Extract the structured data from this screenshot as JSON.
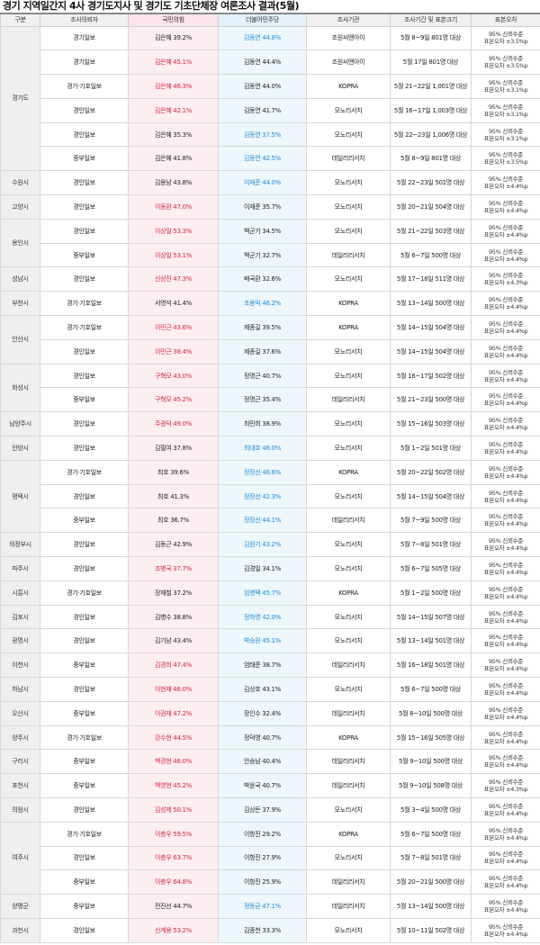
{
  "title": "경기 지역일간지 4사 경기도지사 및 경기도 기초단체장 여론조사 결과(5월)",
  "headers": [
    "구분",
    "조사의뢰자",
    "국민의힘",
    "더불어민주당",
    "조사기관",
    "조사기간 및 표본크기",
    "표본오차"
  ],
  "colors": {
    "ppp_lead": "#d9203f",
    "dem_lead": "#1f8ad6",
    "ppp_bg": "#fdeef2",
    "dem_bg": "#edf7fc",
    "region_bg": "#efefef"
  },
  "groups": [
    {
      "region": "경기도",
      "rows": [
        {
          "client": "경기일보",
          "ppp": "김은혜 39.2%",
          "dem": "김동연 44.8%",
          "lead": "dem",
          "agency": "조원씨앤아이",
          "period": "5월 8~9일 801명 대상",
          "error1": "95% 신뢰수준",
          "error2": "표본오차 ±3.5%p"
        },
        {
          "client": "경기일보",
          "ppp": "김은혜 45.1%",
          "dem": "김동연 44.4%",
          "lead": "ppp",
          "agency": "조원씨앤아이",
          "period": "5월 17일 801명 대상",
          "error1": "95% 신뢰수준",
          "error2": "표본오차 ±3.5%p"
        },
        {
          "client": "경기·기호일보",
          "ppp": "김은혜 46.3%",
          "dem": "김동연 44.0%",
          "lead": "ppp",
          "agency": "KOPRA",
          "period": "5월 21~22일 1,001명 대상",
          "error1": "95% 신뢰수준",
          "error2": "표본오차 ±3.1%p"
        },
        {
          "client": "경인일보",
          "ppp": "김은혜 42.1%",
          "dem": "김동연 41.7%",
          "lead": "ppp",
          "agency": "모노리서치",
          "period": "5월 16~17일 1,003명 대상",
          "error1": "95% 신뢰수준",
          "error2": "표본오차 ±3.1%p"
        },
        {
          "client": "경인일보",
          "ppp": "김은혜 35.3%",
          "dem": "김동연 37.5%",
          "lead": "dem",
          "agency": "모노리서치",
          "period": "5월 22~23일 1,006명 대상",
          "error1": "95% 신뢰수준",
          "error2": "표본오차 ±3.1%p"
        },
        {
          "client": "중부일보",
          "ppp": "김은혜 41.8%",
          "dem": "김동연 42.5%",
          "lead": "dem",
          "agency": "데일리리서치",
          "period": "5월 8~9일 801명 대상",
          "error1": "95% 신뢰수준",
          "error2": "표본오차 ±3.5%p"
        }
      ]
    },
    {
      "region": "수원시",
      "rows": [
        {
          "client": "경인일보",
          "ppp": "김용남 43.8%",
          "dem": "이재준 44.0%",
          "lead": "dem",
          "agency": "모노리서치",
          "period": "5월 22~23일 501명 대상",
          "error1": "95% 신뢰수준",
          "error2": "표본오차 ±4.4%p"
        }
      ]
    },
    {
      "region": "고양시",
      "rows": [
        {
          "client": "경인일보",
          "ppp": "이동환 47.0%",
          "dem": "이재준 35.7%",
          "lead": "ppp",
          "agency": "모노리서치",
          "period": "5월 20~21일 504명 대상",
          "error1": "95% 신뢰수준",
          "error2": "표본오차 ±4.4%p"
        }
      ]
    },
    {
      "region": "용인시",
      "rows": [
        {
          "client": "경인일보",
          "ppp": "이상일 53.3%",
          "dem": "백군기 34.5%",
          "lead": "ppp",
          "agency": "모노리서치",
          "period": "5월 21~22일 503명 대상",
          "error1": "95% 신뢰수준",
          "error2": "표본오차 ±4.4%p"
        },
        {
          "client": "중부일보",
          "ppp": "이상일 53.1%",
          "dem": "백군기 32.7%",
          "lead": "ppp",
          "agency": "데일리리서치",
          "period": "5월 6~7일 500명 대상",
          "error1": "95% 신뢰수준",
          "error2": "표본오차 ±4.4%p"
        }
      ]
    },
    {
      "region": "성남시",
      "rows": [
        {
          "client": "경인일보",
          "ppp": "신상진 47.3%",
          "dem": "배국환 32.6%",
          "lead": "ppp",
          "agency": "모노리서치",
          "period": "5월 17~18일 511명 대상",
          "error1": "95% 신뢰수준",
          "error2": "표본오차 ±4.3%p"
        }
      ]
    },
    {
      "region": "부천시",
      "rows": [
        {
          "client": "경기·기호일보",
          "ppp": "서영석 41.4%",
          "dem": "조용익 46.2%",
          "lead": "dem",
          "agency": "KOPRA",
          "period": "5월 13~14일 500명 대상",
          "error1": "95% 신뢰수준",
          "error2": "표본오차 ±4.4%p"
        }
      ]
    },
    {
      "region": "안산시",
      "rows": [
        {
          "client": "경기·기호일보",
          "ppp": "이민근 43.6%",
          "dem": "제종길 39.5%",
          "lead": "ppp",
          "agency": "KOPRA",
          "period": "5월 14~15일 504명 대상",
          "error1": "95% 신뢰수준",
          "error2": "표본오차 ±4.4%p"
        },
        {
          "client": "경인일보",
          "ppp": "이민근 38.4%",
          "dem": "제종길 37.6%",
          "lead": "ppp",
          "agency": "모노리서치",
          "period": "5월 14~15일 504명 대상",
          "error1": "95% 신뢰수준",
          "error2": "표본오차 ±4.4%p"
        }
      ]
    },
    {
      "region": "화성시",
      "rows": [
        {
          "client": "경인일보",
          "ppp": "구혁모 43.0%",
          "dem": "정명근 40.7%",
          "lead": "ppp",
          "agency": "모노리서치",
          "period": "5월 16~17일 502명 대상",
          "error1": "95% 신뢰수준",
          "error2": "표본오차 ±4.4%p"
        },
        {
          "client": "중부일보",
          "ppp": "구혁모 45.2%",
          "dem": "정명근 35.4%",
          "lead": "ppp",
          "agency": "데일리리서치",
          "period": "5월 21~23일 500명 대상",
          "error1": "95% 신뢰수준",
          "error2": "표본오차 ±4.4%p"
        }
      ]
    },
    {
      "region": "남양주시",
      "rows": [
        {
          "client": "경인일보",
          "ppp": "주광덕 49.0%",
          "dem": "최민희 38.9%",
          "lead": "ppp",
          "agency": "모노리서치",
          "period": "5월 15~16일 503명 대상",
          "error1": "95% 신뢰수준",
          "error2": "표본오차 ±4.4%p"
        }
      ]
    },
    {
      "region": "안양시",
      "rows": [
        {
          "client": "경인일보",
          "ppp": "김필여 37.8%",
          "dem": "최대호 46.0%",
          "lead": "dem",
          "agency": "모노리서치",
          "period": "5월 1~2일 501명 대상",
          "error1": "95% 신뢰수준",
          "error2": "표본오차 ±4.4%p"
        }
      ]
    },
    {
      "region": "평택시",
      "rows": [
        {
          "client": "경기·기호일보",
          "ppp": "최호 39.6%",
          "dem": "정장선 46.6%",
          "lead": "dem",
          "agency": "KOPRA",
          "period": "5월 20~22일 502명 대상",
          "error1": "95% 신뢰수준",
          "error2": "표본오차 ±4.4%p"
        },
        {
          "client": "경인일보",
          "ppp": "최호 41.3%",
          "dem": "정장선 42.3%",
          "lead": "dem",
          "agency": "모노리서치",
          "period": "5월 14~15일 504명 대상",
          "error1": "95% 신뢰수준",
          "error2": "표본오차 ±4.4%p"
        },
        {
          "client": "중부일보",
          "ppp": "최호 36.7%",
          "dem": "정장선 44.1%",
          "lead": "dem",
          "agency": "데일리리서치",
          "period": "5월 7~9일 500명 대상",
          "error1": "95% 신뢰수준",
          "error2": "표본오차 ±4.4%p"
        }
      ]
    },
    {
      "region": "의정부시",
      "rows": [
        {
          "client": "경인일보",
          "ppp": "김동근 42.9%",
          "dem": "김원기 43.2%",
          "lead": "dem",
          "agency": "모노리서치",
          "period": "5월 7~8일 501명 대상",
          "error1": "95% 신뢰수준",
          "error2": "표본오차 ±4.4%p"
        }
      ]
    },
    {
      "region": "파주시",
      "rows": [
        {
          "client": "경인일보",
          "ppp": "조병국 37.7%",
          "dem": "김경일 34.1%",
          "lead": "ppp",
          "agency": "모노리서치",
          "period": "5월 6~7일 505명 대상",
          "error1": "95% 신뢰수준",
          "error2": "표본오차 ±4.4%p"
        }
      ]
    },
    {
      "region": "시흥시",
      "rows": [
        {
          "client": "경기·기호일보",
          "ppp": "장재철 37.2%",
          "dem": "임병택 45.7%",
          "lead": "dem",
          "agency": "KOPRA",
          "period": "5월 1~2일 500명 대상",
          "error1": "95% 신뢰수준",
          "error2": "표본오차 ±4.4%p"
        }
      ]
    },
    {
      "region": "김포시",
      "rows": [
        {
          "client": "경인일보",
          "ppp": "김병수 38.8%",
          "dem": "정하영 42.0%",
          "lead": "dem",
          "agency": "모노리서치",
          "period": "5월 14~15일 507명 대상",
          "error1": "95% 신뢰수준",
          "error2": "표본오차 ±4.4%p"
        }
      ]
    },
    {
      "region": "광명시",
      "rows": [
        {
          "client": "경인일보",
          "ppp": "김기남 43.4%",
          "dem": "박승원 45.1%",
          "lead": "dem",
          "agency": "모노리서치",
          "period": "5월 13~14일 501명 대상",
          "error1": "95% 신뢰수준",
          "error2": "표본오차 ±4.4%p"
        }
      ]
    },
    {
      "region": "이천시",
      "rows": [
        {
          "client": "중부일보",
          "ppp": "김경희 47.4%",
          "dem": "엄태준 38.7%",
          "lead": "ppp",
          "agency": "데일리리서치",
          "period": "5월 16~18일 501명 대상",
          "error1": "95% 신뢰수준",
          "error2": "표본오차 ±4.4%p"
        }
      ]
    },
    {
      "region": "하남시",
      "rows": [
        {
          "client": "경인일보",
          "ppp": "이현재 46.0%",
          "dem": "김상호 43.1%",
          "lead": "ppp",
          "agency": "모노리서치",
          "period": "5월 6~7일 500명 대상",
          "error1": "95% 신뢰수준",
          "error2": "표본오차 ±4.4%p"
        }
      ]
    },
    {
      "region": "오산시",
      "rows": [
        {
          "client": "중부일보",
          "ppp": "이권재 47.2%",
          "dem": "장인수 32.4%",
          "lead": "ppp",
          "agency": "데일리리서치",
          "period": "5월 8~10일 500명 대상",
          "error1": "95% 신뢰수준",
          "error2": "표본오차 ±4.4%p"
        }
      ]
    },
    {
      "region": "양주시",
      "rows": [
        {
          "client": "경기·기호일보",
          "ppp": "강수현 44.5%",
          "dem": "정덕영 40.7%",
          "lead": "ppp",
          "agency": "KOPRA",
          "period": "5월 15~16일 505명 대상",
          "error1": "95% 신뢰수준",
          "error2": "표본오차 ±4.4%p"
        }
      ]
    },
    {
      "region": "구리시",
      "rows": [
        {
          "client": "중부일보",
          "ppp": "백경현 46.0%",
          "dem": "안승남 40.4%",
          "lead": "ppp",
          "agency": "데일리리서치",
          "period": "5월 9~10일 500명 대상",
          "error1": "95% 신뢰수준",
          "error2": "표본오차 ±4.4%p"
        }
      ]
    },
    {
      "region": "포천시",
      "rows": [
        {
          "client": "중부일보",
          "ppp": "백영현 45.2%",
          "dem": "박윤국 40.7%",
          "lead": "ppp",
          "agency": "데일리리서치",
          "period": "5월 9~10일 508명 대상",
          "error1": "95% 신뢰수준",
          "error2": "표본오차 ±4.3%p"
        }
      ]
    },
    {
      "region": "의왕시",
      "rows": [
        {
          "client": "경인일보",
          "ppp": "김성제 50.1%",
          "dem": "김상돈 37.9%",
          "lead": "ppp",
          "agency": "모노리서치",
          "period": "5월 3~4일 500명 대상",
          "error1": "95% 신뢰수준",
          "error2": "표본오차 ±4.4%p"
        }
      ]
    },
    {
      "region": "여주시",
      "rows": [
        {
          "client": "경기·기호일보",
          "ppp": "이충우 59.5%",
          "dem": "이항진 29.2%",
          "lead": "ppp",
          "agency": "KOPRA",
          "period": "5월 6~7일 500명 대상",
          "error1": "95% 신뢰수준",
          "error2": "표본오차 ±4.4%p"
        },
        {
          "client": "경인일보",
          "ppp": "이충우 63.7%",
          "dem": "이항진 27.9%",
          "lead": "ppp",
          "agency": "모노리서치",
          "period": "5월 7~8일 501명 대상",
          "error1": "95% 신뢰수준",
          "error2": "표본오차 ±4.4%p"
        },
        {
          "client": "중부일보",
          "ppp": "이충우 64.8%",
          "dem": "이항진 25.9%",
          "lead": "ppp",
          "agency": "데일리리서치",
          "period": "5월 20~21일 500명 대상",
          "error1": "95% 신뢰수준",
          "error2": "표본오차 ±4.4%p"
        }
      ]
    },
    {
      "region": "양평군",
      "rows": [
        {
          "client": "중부일보",
          "ppp": "전진선 44.7%",
          "dem": "정동균 47.1%",
          "lead": "dem",
          "agency": "데일리리서치",
          "period": "5월 13~14일 500명 대상",
          "error1": "95% 신뢰수준",
          "error2": "표본오차 ±4.4%p"
        }
      ]
    },
    {
      "region": "과천시",
      "rows": [
        {
          "client": "경인일보",
          "ppp": "신계용 53.2%",
          "dem": "김종천 33.3%",
          "lead": "ppp",
          "agency": "모노리서치",
          "period": "5월 10~11일 502명 대상",
          "error1": "95% 신뢰수준",
          "error2": "표본오차 ±4.4%p"
        }
      ]
    }
  ]
}
